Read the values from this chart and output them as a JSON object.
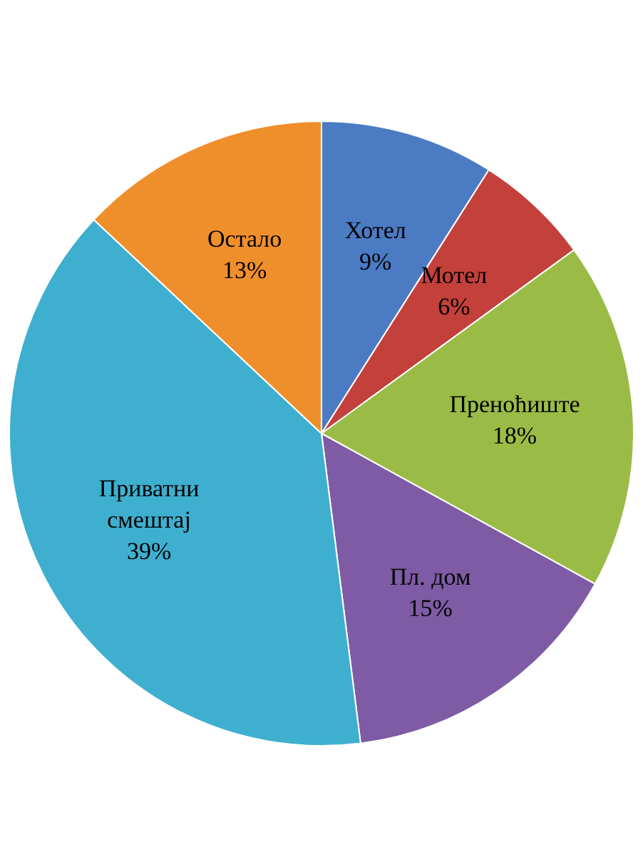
{
  "chart_data": {
    "type": "pie",
    "categories": [
      "Хотел",
      "Мотел",
      "Преноћиште",
      "Пл. дом",
      "Приватни смештај",
      "Остало"
    ],
    "values": [
      9,
      6,
      18,
      15,
      39,
      13
    ],
    "value_labels": [
      "9%",
      "6%",
      "18%",
      "15%",
      "39%",
      "13%"
    ],
    "colors": [
      "#4a7bc3",
      "#c4403b",
      "#9bbb47",
      "#7e5ba4",
      "#3fafcf",
      "#ef8f2c"
    ],
    "legend": false
  }
}
